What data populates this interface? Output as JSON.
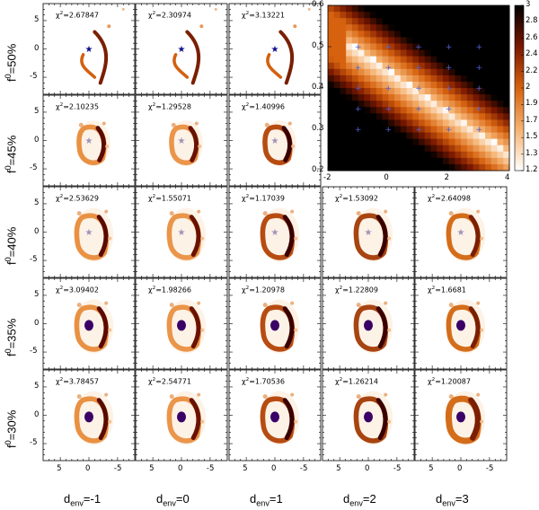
{
  "figure": {
    "col_labels": [
      {
        "base": "d",
        "sub": "env",
        "value": "=-1"
      },
      {
        "base": "d",
        "sub": "env",
        "value": "=0"
      },
      {
        "base": "d",
        "sub": "env",
        "value": "=1"
      },
      {
        "base": "d",
        "sub": "env",
        "value": "=2"
      },
      {
        "base": "d",
        "sub": "env",
        "value": "=3"
      }
    ],
    "row_labels": [
      {
        "base": "f",
        "sup": "0",
        "value": "=50%"
      },
      {
        "base": "f",
        "sup": "0",
        "value": "=45%"
      },
      {
        "base": "f",
        "sup": "0",
        "value": "=40%"
      },
      {
        "base": "f",
        "sup": "0",
        "value": "=35%"
      },
      {
        "base": "f",
        "sup": "0",
        "value": "=30%"
      }
    ],
    "chi_prefix": "χ",
    "chi_sup": "2",
    "chi_values": [
      [
        "=2.67847",
        "=2.30974",
        "=3.13221",
        null,
        null
      ],
      [
        "=2.10235",
        "=1.29528",
        "=1.40996",
        null,
        null
      ],
      [
        "=2.53629",
        "=1.55071",
        "=1.17039",
        "=1.53092",
        "=2.64098"
      ],
      [
        "=3.09402",
        "=1.98266",
        "=1.20978",
        "=1.22809",
        "=1.6681"
      ],
      [
        "=3.78457",
        "=2.54771",
        "=1.70536",
        "=1.26214",
        "=1.20087"
      ]
    ],
    "panel_x_ticks": [
      "5",
      "0",
      "-5"
    ],
    "panel_y_ticks": [
      "5",
      "0",
      "-5"
    ],
    "inset": {
      "x_ticks": [
        "-2",
        "0",
        "2",
        "4"
      ],
      "y_ticks": [
        "0.6",
        "0.5",
        "0.4",
        "0.3",
        "0.2"
      ],
      "colorbar_ticks": [
        "3",
        "2.8",
        "2.6",
        "2.4",
        "2.2",
        "2",
        "1.9",
        "1.7",
        "1.5",
        "1.3",
        "1.2"
      ],
      "x_range": [
        -2,
        4
      ],
      "y_range": [
        0.2,
        0.6
      ],
      "grid_marker_x": [
        -1,
        0,
        1,
        2,
        3
      ],
      "grid_marker_y": [
        0.3,
        0.35,
        0.4,
        0.45,
        0.5
      ]
    },
    "colors": {
      "light": "#fbe9d6",
      "mid": "#d3600f",
      "dark": "#3a0000",
      "star": "#10108a"
    }
  }
}
